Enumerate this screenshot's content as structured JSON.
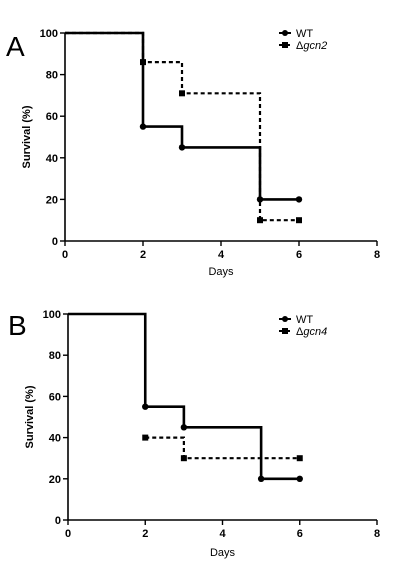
{
  "chart_data": [
    {
      "type": "line",
      "panel_label": "A",
      "xlabel": "Days",
      "ylabel": "Survival (%)",
      "xlim": [
        0,
        8
      ],
      "ylim": [
        0,
        100
      ],
      "xticks": [
        "0",
        "2",
        "4",
        "6",
        "8"
      ],
      "yticks": [
        "0",
        "20",
        "40",
        "60",
        "80",
        "100"
      ],
      "legend_placement": "top-right",
      "series": [
        {
          "name": "WT",
          "style": "solid",
          "marker": "circle",
          "steps": [
            [
              0,
              100
            ],
            [
              2,
              55
            ],
            [
              3,
              45
            ],
            [
              5,
              20
            ],
            [
              6,
              20
            ]
          ],
          "markers": [
            [
              2,
              55
            ],
            [
              3,
              45
            ],
            [
              5,
              20
            ],
            [
              6,
              20
            ]
          ]
        },
        {
          "name": "Δgcn2",
          "name_prefix": "Δ",
          "name_italic": "gcn2",
          "style": "dashed",
          "marker": "square",
          "steps": [
            [
              0,
              100
            ],
            [
              2,
              86
            ],
            [
              3,
              71
            ],
            [
              5,
              10
            ],
            [
              6,
              10
            ]
          ],
          "markers": [
            [
              2,
              86
            ],
            [
              3,
              71
            ],
            [
              5,
              10
            ],
            [
              6,
              10
            ]
          ]
        }
      ]
    },
    {
      "type": "line",
      "panel_label": "B",
      "xlabel": "Days",
      "ylabel": "Survival (%)",
      "xlim": [
        0,
        8
      ],
      "ylim": [
        0,
        100
      ],
      "xticks": [
        "0",
        "2",
        "4",
        "6",
        "8"
      ],
      "yticks": [
        "0",
        "20",
        "40",
        "60",
        "80",
        "100"
      ],
      "legend_placement": "top-right",
      "series": [
        {
          "name": "WT",
          "style": "solid",
          "marker": "circle",
          "steps": [
            [
              0,
              100
            ],
            [
              2,
              55
            ],
            [
              3,
              45
            ],
            [
              5,
              20
            ],
            [
              6,
              20
            ]
          ],
          "markers": [
            [
              2,
              55
            ],
            [
              3,
              45
            ],
            [
              5,
              20
            ],
            [
              6,
              20
            ]
          ]
        },
        {
          "name": "Δgcn4",
          "name_prefix": "Δ",
          "name_italic": "gcn4",
          "style": "dashed",
          "marker": "square",
          "steps": [
            [
              2,
              40
            ],
            [
              3,
              30
            ],
            [
              6,
              30
            ]
          ],
          "markers": [
            [
              2,
              40
            ],
            [
              3,
              30
            ],
            [
              6,
              30
            ]
          ]
        }
      ]
    }
  ]
}
